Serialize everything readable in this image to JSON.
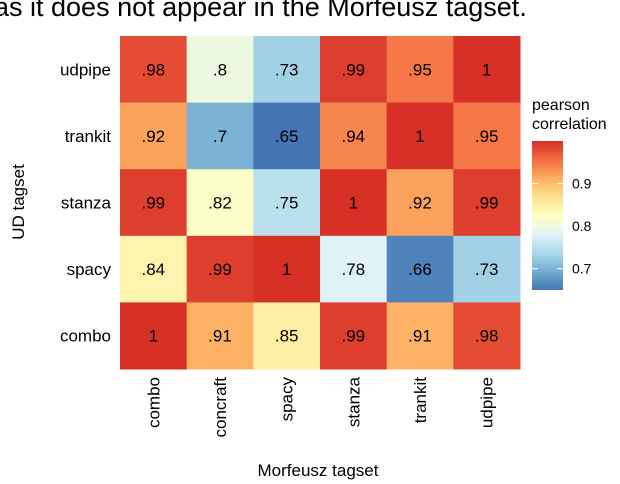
{
  "caption_fragment": "as it does not appear in the Morfeusz tagset.",
  "chart_data": {
    "type": "heatmap",
    "xlabel": "Morfeusz tagset",
    "ylabel": "UD tagset",
    "x_categories": [
      "combo",
      "concraft",
      "spacy",
      "stanza",
      "trankit",
      "udpipe"
    ],
    "y_categories_top_to_bottom": [
      "udpipe",
      "trankit",
      "stanza",
      "spacy",
      "combo"
    ],
    "values": [
      [
        ".98",
        ".8",
        ".73",
        ".99",
        ".95",
        "1"
      ],
      [
        ".92",
        ".7",
        ".65",
        ".94",
        "1",
        ".95"
      ],
      [
        ".99",
        ".82",
        ".75",
        "1",
        ".92",
        ".99"
      ],
      [
        ".84",
        ".99",
        "1",
        ".78",
        ".66",
        ".73"
      ],
      [
        "1",
        ".91",
        ".85",
        ".99",
        ".91",
        ".98"
      ]
    ],
    "legend": {
      "title_line1": "pearson",
      "title_line2": "correlation",
      "ticks": [
        "0.7",
        "0.8",
        "0.9"
      ],
      "range": [
        0.65,
        1.0
      ],
      "placement": "right"
    },
    "colorscale": [
      "#4575b4",
      "#74add1",
      "#abd9e9",
      "#e0f3f8",
      "#ffffbf",
      "#fee090",
      "#fdae61",
      "#f46d43",
      "#d73027"
    ]
  }
}
